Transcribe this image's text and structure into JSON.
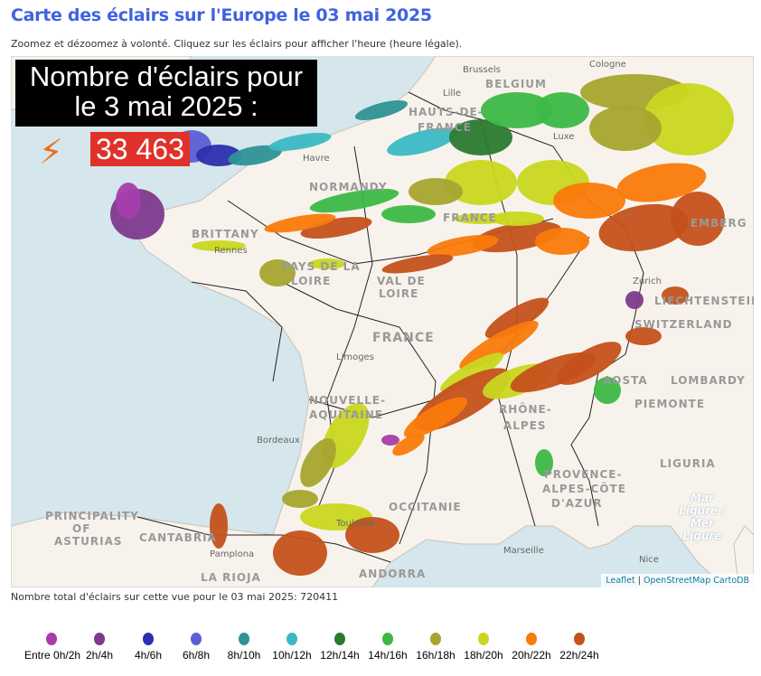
{
  "header": {
    "title": "Carte des éclairs sur l'Europe le 03 mai 2025",
    "subtitle": "Zoomez et dézoomez à volonté. Cliquez sur les éclairs pour afficher l'heure (heure légale)."
  },
  "overlay": {
    "line1": "Nombre d'éclairs pour",
    "line2": "le 3 mai 2025 :",
    "count": "33 463",
    "icon": "lightning-icon"
  },
  "map": {
    "labels": {
      "brussels": "Brussels",
      "belgium": "BELGIUM",
      "cologne": "Cologne",
      "lille": "Lille",
      "hauts": "HAUTS-DE-",
      "france_r": "FRANCE",
      "havre": "Havre",
      "normandy": "NORMANDY",
      "brittany": "BRITTANY",
      "rennes": "Rennes",
      "pays": "PAYS DE LA",
      "loire": "LOIRE",
      "val": "VAL DE",
      "loire2": "LOIRE",
      "france": "FRANCE",
      "limoges": "Limoges",
      "nouvelle": "NOUVELLE-",
      "aquitaine": "AQUITAINE",
      "bordeaux": "Bordeaux",
      "occitanie": "OCCITANIE",
      "toulouse": "Toulouse",
      "asturias1": "PRINCIPALITY",
      "asturias2": "OF",
      "asturias3": "ASTURIAS",
      "cantabria": "CANTABRIA",
      "pamplona": "Pamplona",
      "rioja": "LA RIOJA",
      "andorra": "ANDORRA",
      "marseille": "Marseille",
      "provence1": "PROVENCE-",
      "provence2": "ALPES-CÔTE",
      "provence3": "D'AZUR",
      "nice": "Nice",
      "piemonte": "PIEMONTE",
      "liguria": "LIGURIA",
      "lombardy": "LOMBARDY",
      "switzerland": "SWITZERLAND",
      "liechtenstein": "LIECHTENSTEIN",
      "zurich": "Zurich",
      "aosta": "AOSTA",
      "rhone": "RHÔNE-",
      "alpes": "ALPES",
      "luxembourg": "Luxe",
      "embourg": "EMBERG",
      "sea": "Mar Ligure / Mer Ligure"
    },
    "attribution": {
      "leaflet": "Leaflet",
      "sep": " | ",
      "osm": "OpenStreetMap CartoDB"
    }
  },
  "total": "Nombre total d'éclairs sur cette vue pour le 03 mai 2025: 720411",
  "legend": [
    {
      "label": "Entre 0h/2h",
      "color": "#a63dab"
    },
    {
      "label": "2h/4h",
      "color": "#7e3a8e"
    },
    {
      "label": "4h/6h",
      "color": "#2d2fae"
    },
    {
      "label": "6h/8h",
      "color": "#5b5fd5"
    },
    {
      "label": "8h/10h",
      "color": "#2e9296"
    },
    {
      "label": "10h/12h",
      "color": "#3bb9c4"
    },
    {
      "label": "12h/14h",
      "color": "#2a7a2f"
    },
    {
      "label": "14h/16h",
      "color": "#3db846"
    },
    {
      "label": "16h/18h",
      "color": "#a7a52e"
    },
    {
      "label": "18h/20h",
      "color": "#c9d71f"
    },
    {
      "label": "20h/22h",
      "color": "#fa7a0a"
    },
    {
      "label": "22h/24h",
      "color": "#c4511b"
    }
  ]
}
